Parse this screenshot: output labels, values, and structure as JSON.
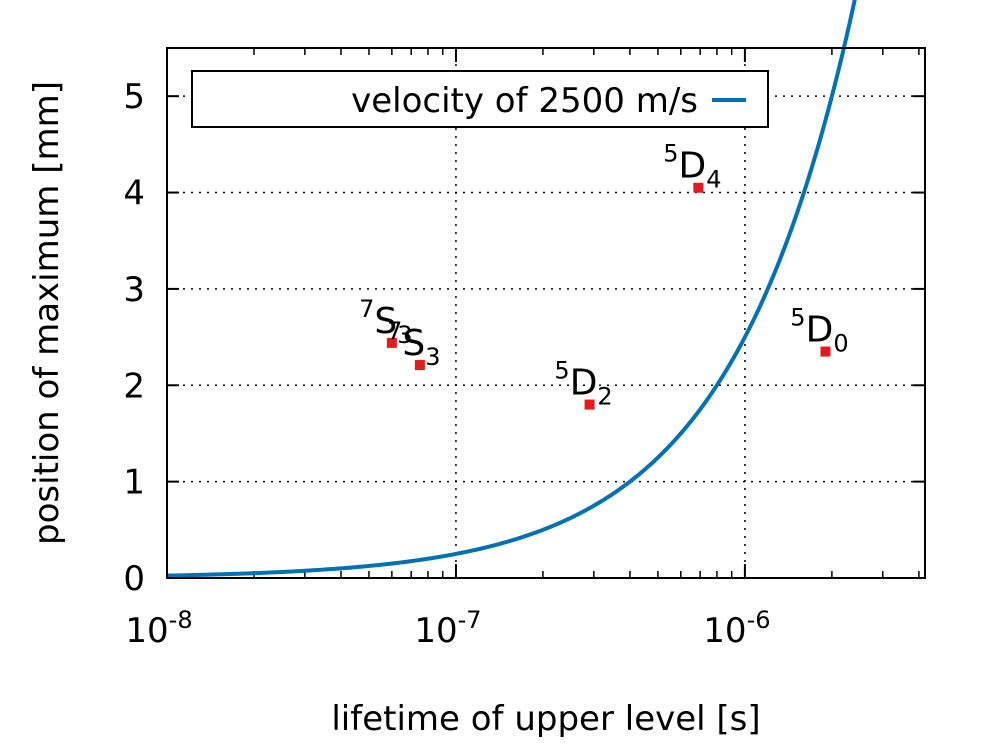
{
  "chart_data": {
    "type": "scatter",
    "xlabel": "lifetime of upper level [s]",
    "ylabel": "position of maximum [mm]",
    "xscale": "log",
    "xlim": [
      1e-08,
      4.2e-06
    ],
    "ylim": [
      0,
      5.5
    ],
    "grid": true,
    "legend_position": "top-left",
    "x_ticks": [
      {
        "value": 1e-08,
        "base": "10",
        "exp": "-8"
      },
      {
        "value": 1e-07,
        "base": "10",
        "exp": "-7"
      },
      {
        "value": 1e-06,
        "base": "10",
        "exp": "-6"
      }
    ],
    "y_ticks": [
      {
        "value": 0,
        "label": "0"
      },
      {
        "value": 1,
        "label": "1"
      },
      {
        "value": 2,
        "label": "2"
      },
      {
        "value": 3,
        "label": "3"
      },
      {
        "value": 4,
        "label": "4"
      },
      {
        "value": 5,
        "label": "5"
      }
    ],
    "series": [
      {
        "name": "velocity of 2500 m/s",
        "type": "line",
        "color": "#0072b2",
        "velocity_m_per_s": 2500,
        "relation": "y_mm = velocity * lifetime * 1000"
      },
      {
        "type": "scatter",
        "color": "#e41a1c",
        "points": [
          {
            "x": 6e-08,
            "y": 2.44,
            "sup": "7",
            "base": "S",
            "sub": "3"
          },
          {
            "x": 7.5e-08,
            "y": 2.21,
            "sup": "7",
            "base": "S",
            "sub": "3"
          },
          {
            "x": 2.9e-07,
            "y": 1.8,
            "sup": "5",
            "base": "D",
            "sub": "2"
          },
          {
            "x": 6.9e-07,
            "y": 4.05,
            "sup": "5",
            "base": "D",
            "sub": "4"
          },
          {
            "x": 1.9e-06,
            "y": 2.35,
            "sup": "5",
            "base": "D",
            "sub": "0"
          }
        ]
      }
    ]
  }
}
